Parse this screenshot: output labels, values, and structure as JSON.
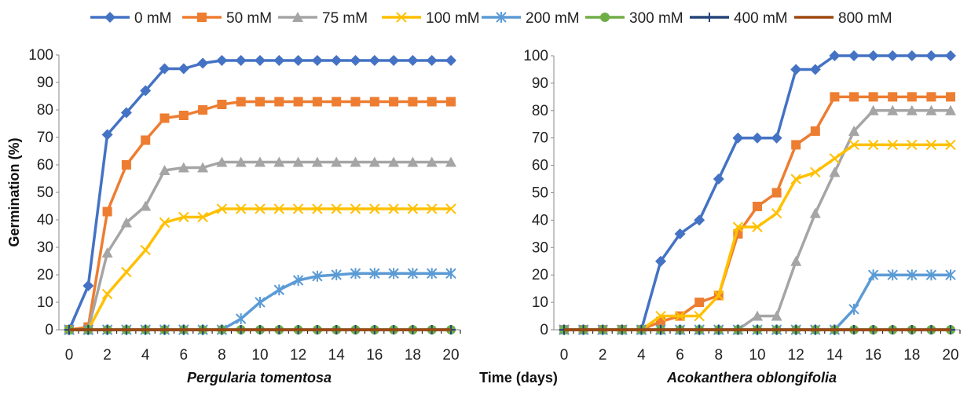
{
  "chart_data": {
    "shared": {
      "xlabel": "Time (days)",
      "ylabel": "Germination (%)",
      "legend_position": "top",
      "series_styles": [
        {
          "name": "0 mM",
          "color": "#4472C4",
          "marker": "diamond"
        },
        {
          "name": "50 mM",
          "color": "#ED7D31",
          "marker": "square"
        },
        {
          "name": "75 mM",
          "color": "#A5A5A5",
          "marker": "triangle"
        },
        {
          "name": "100 mM",
          "color": "#FFC000",
          "marker": "x"
        },
        {
          "name": "200 mM",
          "color": "#5B9BD5",
          "marker": "star"
        },
        {
          "name": "300 mM",
          "color": "#70AD47",
          "marker": "circle"
        },
        {
          "name": "400 mM",
          "color": "#264478",
          "marker": "plus"
        },
        {
          "name": "800 mM",
          "color": "#9E480E",
          "marker": "none"
        }
      ]
    },
    "panels": [
      {
        "type": "line",
        "title": "Pergularia tomentosa",
        "x": [
          0,
          1,
          2,
          3,
          4,
          5,
          6,
          7,
          8,
          9,
          10,
          11,
          12,
          13,
          14,
          15,
          16,
          17,
          18,
          19,
          20
        ],
        "xticks": [
          0,
          2,
          4,
          6,
          8,
          10,
          12,
          14,
          16,
          18,
          20
        ],
        "ylim": [
          0,
          100
        ],
        "yticks": [
          0,
          10,
          20,
          30,
          40,
          50,
          60,
          70,
          80,
          90,
          100
        ],
        "grid": false,
        "series": [
          {
            "name": "0 mM",
            "values": [
              0,
              16,
              71,
              79,
              87,
              95,
              95,
              97,
              98,
              98,
              98,
              98,
              98,
              98,
              98,
              98,
              98,
              98,
              98,
              98,
              98
            ]
          },
          {
            "name": "50 mM",
            "values": [
              0,
              1,
              43,
              60,
              69,
              77,
              78,
              80,
              82,
              83,
              83,
              83,
              83,
              83,
              83,
              83,
              83,
              83,
              83,
              83,
              83
            ]
          },
          {
            "name": "75 mM",
            "values": [
              0,
              0,
              28,
              39,
              45,
              58,
              59,
              59,
              61,
              61,
              61,
              61,
              61,
              61,
              61,
              61,
              61,
              61,
              61,
              61,
              61
            ]
          },
          {
            "name": "100 mM",
            "values": [
              0,
              0,
              13,
              21,
              29,
              39,
              41,
              41,
              44,
              44,
              44,
              44,
              44,
              44,
              44,
              44,
              44,
              44,
              44,
              44,
              44
            ]
          },
          {
            "name": "200 mM",
            "values": [
              0,
              0,
              0,
              0,
              0,
              0,
              0,
              0,
              0,
              4,
              10,
              14.5,
              18,
              19.5,
              20,
              20.5,
              20.5,
              20.5,
              20.5,
              20.5,
              20.5
            ]
          },
          {
            "name": "300 mM",
            "values": [
              0,
              0,
              0,
              0,
              0,
              0,
              0,
              0,
              0,
              0,
              0,
              0,
              0,
              0,
              0,
              0,
              0,
              0,
              0,
              0,
              0
            ]
          },
          {
            "name": "400 mM",
            "values": [
              0,
              0,
              0,
              0,
              0,
              0,
              0,
              0,
              0,
              0,
              0,
              0,
              0,
              0,
              0,
              0,
              0,
              0,
              0,
              0,
              0
            ]
          },
          {
            "name": "800 mM",
            "values": [
              0,
              0,
              0,
              0,
              0,
              0,
              0,
              0,
              0,
              0,
              0,
              0,
              0,
              0,
              0,
              0,
              0,
              0,
              0,
              0,
              0
            ]
          }
        ]
      },
      {
        "type": "line",
        "title": "Acokanthera oblongifolia",
        "x": [
          0,
          1,
          2,
          3,
          4,
          5,
          6,
          7,
          8,
          9,
          10,
          11,
          12,
          13,
          14,
          15,
          16,
          17,
          18,
          19,
          20
        ],
        "xticks": [
          0,
          2,
          4,
          6,
          8,
          10,
          12,
          14,
          16,
          18,
          20
        ],
        "ylim": [
          0,
          100
        ],
        "yticks": [
          0,
          10,
          20,
          30,
          40,
          50,
          60,
          70,
          80,
          90,
          100
        ],
        "grid": false,
        "series": [
          {
            "name": "0 mM",
            "values": [
              0,
              0,
              0,
              0,
              0,
              25,
              35,
              40,
              55,
              70,
              70,
              70,
              95,
              95,
              100,
              100,
              100,
              100,
              100,
              100,
              100
            ]
          },
          {
            "name": "50 mM",
            "values": [
              0,
              0,
              0,
              0,
              0,
              3,
              5,
              10,
              12.5,
              35,
              45,
              50,
              67.5,
              72.5,
              85,
              85,
              85,
              85,
              85,
              85,
              85
            ]
          },
          {
            "name": "75 mM",
            "values": [
              0,
              0,
              0,
              0,
              0,
              0,
              0,
              0,
              0,
              0,
              5,
              5,
              25,
              42.5,
              57.5,
              72.5,
              80,
              80,
              80,
              80,
              80
            ]
          },
          {
            "name": "100 mM",
            "values": [
              0,
              0,
              0,
              0,
              0,
              5,
              5,
              5,
              12.5,
              37.5,
              37.5,
              42.5,
              55,
              57.5,
              62.5,
              67.5,
              67.5,
              67.5,
              67.5,
              67.5,
              67.5
            ]
          },
          {
            "name": "200 mM",
            "values": [
              0,
              0,
              0,
              0,
              0,
              0,
              0,
              0,
              0,
              0,
              0,
              0,
              0,
              0,
              0,
              7.5,
              20,
              20,
              20,
              20,
              20
            ]
          },
          {
            "name": "300 mM",
            "values": [
              0,
              0,
              0,
              0,
              0,
              0,
              0,
              0,
              0,
              0,
              0,
              0,
              0,
              0,
              0,
              0,
              0,
              0,
              0,
              0,
              0
            ]
          },
          {
            "name": "400 mM",
            "values": [
              0,
              0,
              0,
              0,
              0,
              0,
              0,
              0,
              0,
              0,
              0,
              0,
              0,
              0,
              0,
              0,
              0,
              0,
              0,
              0,
              0
            ]
          },
          {
            "name": "800 mM",
            "values": [
              0,
              0,
              0,
              0,
              0,
              0,
              0,
              0,
              0,
              0,
              0,
              0,
              0,
              0,
              0,
              0,
              0,
              0,
              0,
              0,
              0
            ]
          }
        ]
      }
    ]
  }
}
